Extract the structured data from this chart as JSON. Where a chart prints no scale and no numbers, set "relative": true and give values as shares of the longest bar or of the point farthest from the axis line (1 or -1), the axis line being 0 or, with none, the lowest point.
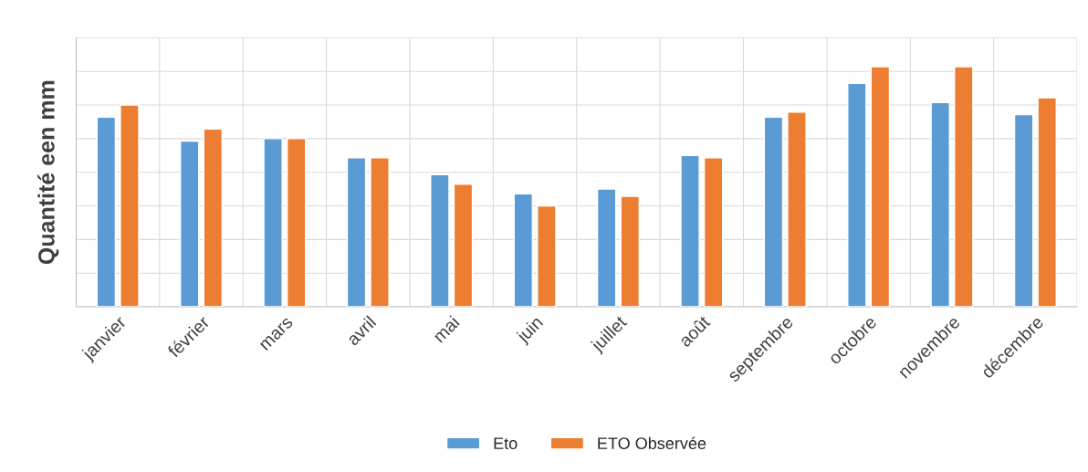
{
  "chart_data": {
    "type": "bar",
    "ylabel": "Quantité een mm",
    "relative": true,
    "grid": true,
    "legend": "bottom",
    "categories": [
      "janvier",
      "février",
      "mars",
      "avril",
      "mai",
      "juin",
      "juillet",
      "août",
      "septembre",
      "octobre",
      "novembre",
      "décembre"
    ],
    "series": [
      {
        "name": "Eto",
        "color": "#5b9bd5",
        "values": [
          0.79,
          0.69,
          0.7,
          0.62,
          0.55,
          0.47,
          0.49,
          0.63,
          0.79,
          0.93,
          0.85,
          0.8
        ]
      },
      {
        "name": "ETO Observée",
        "color": "#ed7d31",
        "values": [
          0.84,
          0.74,
          0.7,
          0.62,
          0.51,
          0.42,
          0.46,
          0.62,
          0.81,
          1.0,
          1.0,
          0.87
        ]
      }
    ]
  }
}
